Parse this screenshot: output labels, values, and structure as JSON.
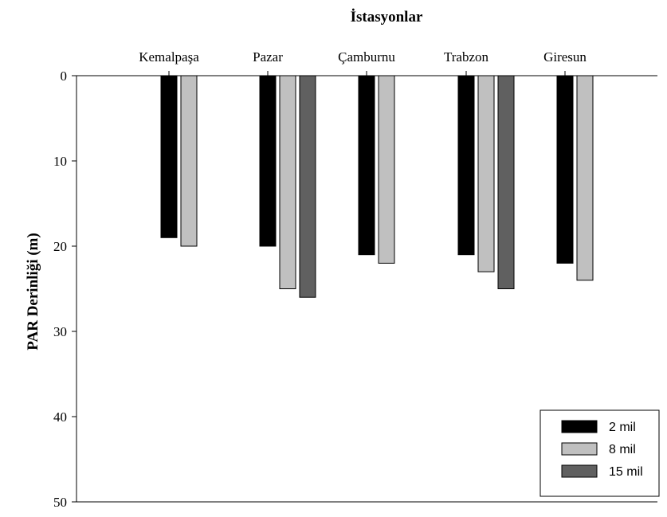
{
  "chart_data": {
    "type": "bar",
    "title": "İstasyonlar",
    "xlabel": "",
    "ylabel": "PAR Derinliği (m)",
    "ylim": [
      0,
      50
    ],
    "y_inverted": true,
    "x_axis_position": "top",
    "yticks": [
      0,
      10,
      20,
      30,
      40,
      50
    ],
    "grid": false,
    "legend_position": "bottom-right",
    "categories": [
      "Kemalpaşa",
      "Pazar",
      "Çamburnu",
      "Trabzon",
      "Giresun"
    ],
    "series": [
      {
        "name": "2 mil",
        "color": "#000000",
        "values": [
          19,
          20,
          21,
          21,
          22
        ]
      },
      {
        "name": "8 mil",
        "color": "#c0c0c0",
        "values": [
          20,
          25,
          22,
          23,
          24
        ]
      },
      {
        "name": "15 mil",
        "color": "#606060",
        "values": [
          null,
          26,
          null,
          25,
          null
        ]
      }
    ]
  }
}
